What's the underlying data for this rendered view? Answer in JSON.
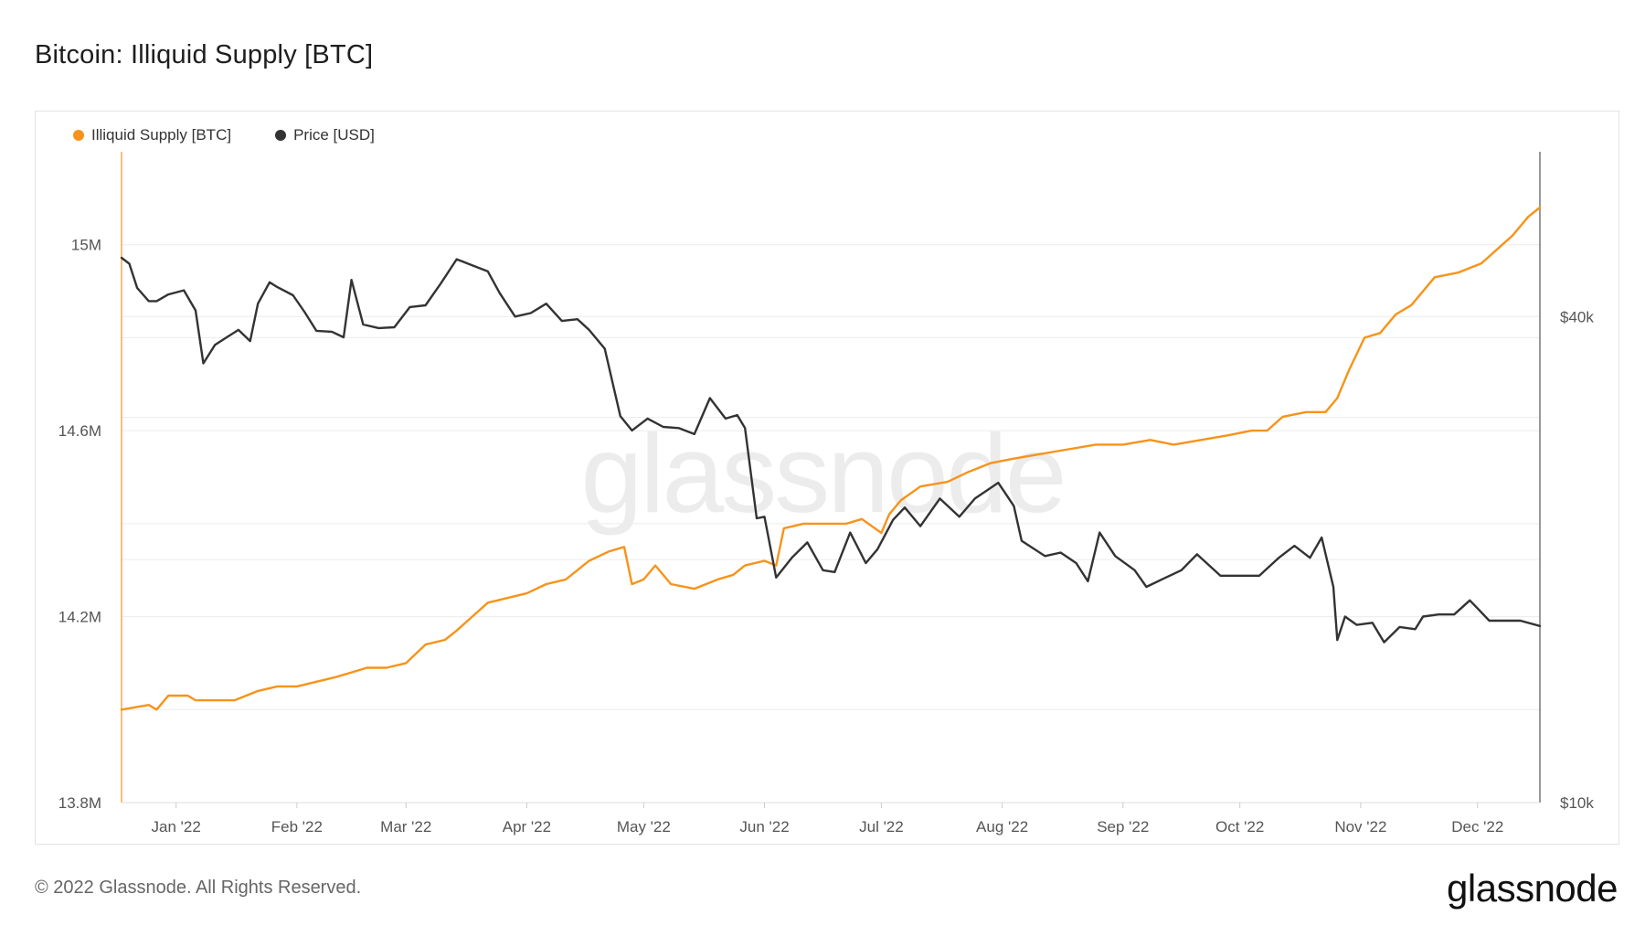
{
  "title": "Bitcoin: Illiquid Supply [BTC]",
  "footer": "© 2022 Glassnode. All Rights Reserved.",
  "brand": "glassnode",
  "watermark": "glassnode",
  "legend": [
    {
      "label": "Illiquid Supply [BTC]",
      "color": "#f7931a"
    },
    {
      "label": "Price [USD]",
      "color": "#333333"
    }
  ],
  "chart_data": {
    "type": "line",
    "title": "Bitcoin: Illiquid Supply [BTC]",
    "x_ticks": [
      "Jan '22",
      "Feb '22",
      "Mar '22",
      "Apr '22",
      "May '22",
      "Jun '22",
      "Jul '22",
      "Aug '22",
      "Sep '22",
      "Oct '22",
      "Nov '22",
      "Dec '22"
    ],
    "left_axis": {
      "ticks": [
        "13.8M",
        "14.2M",
        "14.6M",
        "15M"
      ],
      "range": [
        13.8,
        15.2
      ],
      "unit": "M BTC"
    },
    "right_axis": {
      "ticks": [
        "$10k",
        "$40k"
      ],
      "scale": "log",
      "range": [
        10000,
        64000
      ]
    },
    "series": [
      {
        "name": "Illiquid Supply [BTC]",
        "color": "#f7931a",
        "axis": "left",
        "points": [
          [
            "2022-01-01",
            14.0
          ],
          [
            "2022-01-08",
            14.01
          ],
          [
            "2022-01-10",
            14.0
          ],
          [
            "2022-01-13",
            14.03
          ],
          [
            "2022-01-18",
            14.03
          ],
          [
            "2022-01-20",
            14.02
          ],
          [
            "2022-01-25",
            14.02
          ],
          [
            "2022-01-30",
            14.02
          ],
          [
            "2022-02-05",
            14.04
          ],
          [
            "2022-02-10",
            14.05
          ],
          [
            "2022-02-15",
            14.05
          ],
          [
            "2022-02-20",
            14.06
          ],
          [
            "2022-02-25",
            14.07
          ],
          [
            "2022-03-01",
            14.08
          ],
          [
            "2022-03-05",
            14.09
          ],
          [
            "2022-03-10",
            14.09
          ],
          [
            "2022-03-15",
            14.1
          ],
          [
            "2022-03-20",
            14.14
          ],
          [
            "2022-03-25",
            14.15
          ],
          [
            "2022-03-28",
            14.17
          ],
          [
            "2022-04-01",
            14.2
          ],
          [
            "2022-04-05",
            14.23
          ],
          [
            "2022-04-10",
            14.24
          ],
          [
            "2022-04-15",
            14.25
          ],
          [
            "2022-04-20",
            14.27
          ],
          [
            "2022-04-25",
            14.28
          ],
          [
            "2022-05-01",
            14.32
          ],
          [
            "2022-05-06",
            14.34
          ],
          [
            "2022-05-10",
            14.35
          ],
          [
            "2022-05-12",
            14.27
          ],
          [
            "2022-05-15",
            14.28
          ],
          [
            "2022-05-18",
            14.31
          ],
          [
            "2022-05-22",
            14.27
          ],
          [
            "2022-05-28",
            14.26
          ],
          [
            "2022-06-03",
            14.28
          ],
          [
            "2022-06-07",
            14.29
          ],
          [
            "2022-06-10",
            14.31
          ],
          [
            "2022-06-15",
            14.32
          ],
          [
            "2022-06-18",
            14.31
          ],
          [
            "2022-06-20",
            14.39
          ],
          [
            "2022-06-25",
            14.4
          ],
          [
            "2022-07-01",
            14.4
          ],
          [
            "2022-07-06",
            14.4
          ],
          [
            "2022-07-10",
            14.41
          ],
          [
            "2022-07-15",
            14.38
          ],
          [
            "2022-07-17",
            14.42
          ],
          [
            "2022-07-20",
            14.45
          ],
          [
            "2022-07-25",
            14.48
          ],
          [
            "2022-08-01",
            14.49
          ],
          [
            "2022-08-06",
            14.51
          ],
          [
            "2022-08-12",
            14.53
          ],
          [
            "2022-08-18",
            14.54
          ],
          [
            "2022-08-25",
            14.55
          ],
          [
            "2022-09-01",
            14.56
          ],
          [
            "2022-09-08",
            14.57
          ],
          [
            "2022-09-15",
            14.57
          ],
          [
            "2022-09-22",
            14.58
          ],
          [
            "2022-09-28",
            14.57
          ],
          [
            "2022-10-05",
            14.58
          ],
          [
            "2022-10-12",
            14.59
          ],
          [
            "2022-10-18",
            14.6
          ],
          [
            "2022-10-22",
            14.6
          ],
          [
            "2022-10-26",
            14.63
          ],
          [
            "2022-11-01",
            14.64
          ],
          [
            "2022-11-06",
            14.64
          ],
          [
            "2022-11-09",
            14.67
          ],
          [
            "2022-11-12",
            14.73
          ],
          [
            "2022-11-16",
            14.8
          ],
          [
            "2022-11-20",
            14.81
          ],
          [
            "2022-11-24",
            14.85
          ],
          [
            "2022-11-28",
            14.87
          ],
          [
            "2022-12-04",
            14.93
          ],
          [
            "2022-12-10",
            14.94
          ],
          [
            "2022-12-16",
            14.96
          ],
          [
            "2022-12-20",
            14.99
          ],
          [
            "2022-12-24",
            15.02
          ],
          [
            "2022-12-28",
            15.06
          ],
          [
            "2022-12-31",
            15.08
          ]
        ]
      },
      {
        "name": "Price [USD]",
        "color": "#333333",
        "axis": "right",
        "points": [
          [
            "2022-01-01",
            47300
          ],
          [
            "2022-01-03",
            46500
          ],
          [
            "2022-01-05",
            43400
          ],
          [
            "2022-01-08",
            41800
          ],
          [
            "2022-01-10",
            41800
          ],
          [
            "2022-01-13",
            42600
          ],
          [
            "2022-01-17",
            43100
          ],
          [
            "2022-01-20",
            40700
          ],
          [
            "2022-01-22",
            35000
          ],
          [
            "2022-01-25",
            36900
          ],
          [
            "2022-01-28",
            37700
          ],
          [
            "2022-01-31",
            38500
          ],
          [
            "2022-02-03",
            37300
          ],
          [
            "2022-02-05",
            41500
          ],
          [
            "2022-02-08",
            44100
          ],
          [
            "2022-02-10",
            43500
          ],
          [
            "2022-02-14",
            42500
          ],
          [
            "2022-02-17",
            40500
          ],
          [
            "2022-02-20",
            38400
          ],
          [
            "2022-02-24",
            38300
          ],
          [
            "2022-02-27",
            37700
          ],
          [
            "2022-03-01",
            44400
          ],
          [
            "2022-03-04",
            39100
          ],
          [
            "2022-03-08",
            38700
          ],
          [
            "2022-03-12",
            38800
          ],
          [
            "2022-03-16",
            41100
          ],
          [
            "2022-03-20",
            41300
          ],
          [
            "2022-03-24",
            44000
          ],
          [
            "2022-03-28",
            47100
          ],
          [
            "2022-04-01",
            46300
          ],
          [
            "2022-04-05",
            45500
          ],
          [
            "2022-04-08",
            42800
          ],
          [
            "2022-04-12",
            40000
          ],
          [
            "2022-04-16",
            40400
          ],
          [
            "2022-04-20",
            41500
          ],
          [
            "2022-04-24",
            39500
          ],
          [
            "2022-04-28",
            39700
          ],
          [
            "2022-05-01",
            38500
          ],
          [
            "2022-05-05",
            36500
          ],
          [
            "2022-05-09",
            30100
          ],
          [
            "2022-05-12",
            28900
          ],
          [
            "2022-05-16",
            29900
          ],
          [
            "2022-05-20",
            29200
          ],
          [
            "2022-05-24",
            29100
          ],
          [
            "2022-05-28",
            28600
          ],
          [
            "2022-06-01",
            31700
          ],
          [
            "2022-06-05",
            29900
          ],
          [
            "2022-06-08",
            30200
          ],
          [
            "2022-06-10",
            29100
          ],
          [
            "2022-06-13",
            22500
          ],
          [
            "2022-06-15",
            22600
          ],
          [
            "2022-06-18",
            19000
          ],
          [
            "2022-06-22",
            20100
          ],
          [
            "2022-06-26",
            21000
          ],
          [
            "2022-06-30",
            19400
          ],
          [
            "2022-07-03",
            19300
          ],
          [
            "2022-07-07",
            21600
          ],
          [
            "2022-07-11",
            19800
          ],
          [
            "2022-07-14",
            20600
          ],
          [
            "2022-07-18",
            22400
          ],
          [
            "2022-07-21",
            23200
          ],
          [
            "2022-07-25",
            22000
          ],
          [
            "2022-07-30",
            23800
          ],
          [
            "2022-08-04",
            22600
          ],
          [
            "2022-08-08",
            23800
          ],
          [
            "2022-08-14",
            24900
          ],
          [
            "2022-08-18",
            23300
          ],
          [
            "2022-08-20",
            21100
          ],
          [
            "2022-08-26",
            20200
          ],
          [
            "2022-08-30",
            20400
          ],
          [
            "2022-09-03",
            19800
          ],
          [
            "2022-09-06",
            18800
          ],
          [
            "2022-09-09",
            21600
          ],
          [
            "2022-09-13",
            20200
          ],
          [
            "2022-09-18",
            19400
          ],
          [
            "2022-09-21",
            18500
          ],
          [
            "2022-09-25",
            18900
          ],
          [
            "2022-09-30",
            19400
          ],
          [
            "2022-10-04",
            20300
          ],
          [
            "2022-10-10",
            19100
          ],
          [
            "2022-10-15",
            19100
          ],
          [
            "2022-10-20",
            19100
          ],
          [
            "2022-10-25",
            20100
          ],
          [
            "2022-10-29",
            20800
          ],
          [
            "2022-11-02",
            20100
          ],
          [
            "2022-11-05",
            21300
          ],
          [
            "2022-11-08",
            18500
          ],
          [
            "2022-11-09",
            15900
          ],
          [
            "2022-11-11",
            17000
          ],
          [
            "2022-11-14",
            16600
          ],
          [
            "2022-11-18",
            16700
          ],
          [
            "2022-11-21",
            15800
          ],
          [
            "2022-11-25",
            16500
          ],
          [
            "2022-11-29",
            16400
          ],
          [
            "2022-12-01",
            17000
          ],
          [
            "2022-12-05",
            17100
          ],
          [
            "2022-12-09",
            17100
          ],
          [
            "2022-12-13",
            17800
          ],
          [
            "2022-12-15",
            17400
          ],
          [
            "2022-12-18",
            16800
          ],
          [
            "2022-12-22",
            16800
          ],
          [
            "2022-12-26",
            16800
          ],
          [
            "2022-12-31",
            16550
          ]
        ]
      }
    ],
    "grid": true,
    "legend_position": "top-left"
  }
}
